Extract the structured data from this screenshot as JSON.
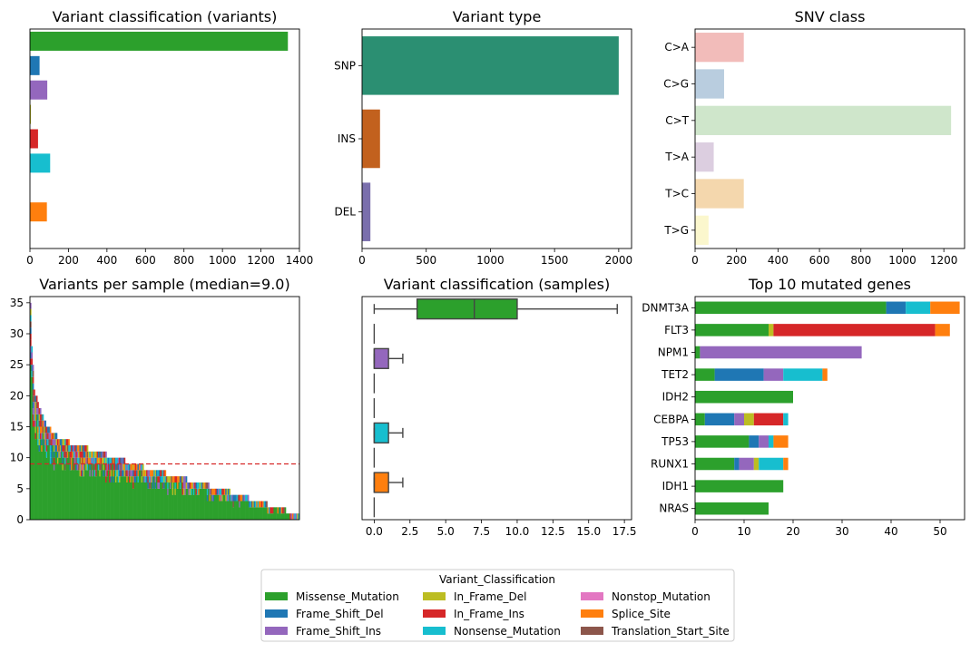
{
  "colors": {
    "Missense_Mutation": "#2ca02c",
    "Frame_Shift_Del": "#1f77b4",
    "Frame_Shift_Ins": "#9467bd",
    "In_Frame_Del": "#bcbd22",
    "In_Frame_Ins": "#d62728",
    "Nonsense_Mutation": "#17becf",
    "Nonstop_Mutation": "#e377c2",
    "Splice_Site": "#ff7f0e",
    "Translation_Start_Site": "#8c564b"
  },
  "legend": {
    "title": "Variant_Classification",
    "entries": [
      "Missense_Mutation",
      "Frame_Shift_Del",
      "Frame_Shift_Ins",
      "In_Frame_Del",
      "In_Frame_Ins",
      "Nonsense_Mutation",
      "Nonstop_Mutation",
      "Splice_Site",
      "Translation_Start_Site"
    ]
  },
  "chart_data": [
    {
      "id": "variant_classification_variants",
      "type": "bar",
      "orientation": "horizontal",
      "title": "Variant classification (variants)",
      "categories": [
        "Missense_Mutation",
        "Frame_Shift_Del",
        "Frame_Shift_Ins",
        "In_Frame_Del",
        "In_Frame_Ins",
        "Nonsense_Mutation",
        "Nonstop_Mutation",
        "Splice_Site",
        "Translation_Start_Site"
      ],
      "values": [
        1340,
        50,
        90,
        5,
        42,
        105,
        0,
        88,
        0
      ],
      "xlim": [
        0,
        1400
      ],
      "xticks": [
        0,
        200,
        400,
        600,
        800,
        1000,
        1200,
        1400
      ],
      "show_ytick_labels": false
    },
    {
      "id": "variant_type",
      "type": "bar",
      "orientation": "horizontal",
      "title": "Variant type",
      "categories": [
        "SNP",
        "INS",
        "DEL"
      ],
      "values": [
        2000,
        140,
        65
      ],
      "colors": [
        "#2b8f72",
        "#c2611e",
        "#7a6fac"
      ],
      "xlim": [
        0,
        2100
      ],
      "xticks": [
        0,
        500,
        1000,
        1500,
        2000
      ]
    },
    {
      "id": "snv_class",
      "type": "bar",
      "orientation": "horizontal",
      "title": "SNV class",
      "categories": [
        "C>A",
        "C>G",
        "C>T",
        "T>A",
        "T>C",
        "T>G"
      ],
      "values": [
        235,
        140,
        1235,
        90,
        235,
        65
      ],
      "colors": [
        "#f2bcba",
        "#b9cddf",
        "#cfe6cb",
        "#dccee0",
        "#f4d7ad",
        "#fbf7cd"
      ],
      "xlim": [
        0,
        1300
      ],
      "xticks": [
        0,
        200,
        400,
        600,
        800,
        1000,
        1200
      ]
    },
    {
      "id": "variants_per_sample",
      "type": "bar",
      "stacked": true,
      "title": "Variants per sample (median=9.0)",
      "median": 9.0,
      "ylim": [
        0,
        36
      ],
      "yticks": [
        0,
        5,
        10,
        15,
        20,
        25,
        30,
        35
      ],
      "totals_profile": [
        [
          1,
          35
        ],
        [
          2,
          28
        ],
        [
          4,
          21
        ],
        [
          8,
          18
        ],
        [
          15,
          15
        ],
        [
          25,
          13
        ],
        [
          40,
          12
        ],
        [
          55,
          11
        ],
        [
          70,
          10
        ],
        [
          85,
          9
        ],
        [
          100,
          8
        ],
        [
          120,
          7
        ],
        [
          135,
          6
        ],
        [
          155,
          5
        ],
        [
          170,
          4
        ],
        [
          185,
          3
        ],
        [
          200,
          2
        ],
        [
          215,
          1
        ]
      ],
      "n_samples": 218,
      "missense_fraction": 0.72,
      "show_xtick_labels": false
    },
    {
      "id": "variant_classification_samples",
      "type": "box",
      "orientation": "horizontal",
      "title": "Variant classification (samples)",
      "categories": [
        "Missense_Mutation",
        "Frame_Shift_Del",
        "Frame_Shift_Ins",
        "In_Frame_Del",
        "In_Frame_Ins",
        "Nonsense_Mutation",
        "Nonstop_Mutation",
        "Splice_Site",
        "Translation_Start_Site"
      ],
      "boxes": [
        {
          "min": 0,
          "q1": 3,
          "median": 7,
          "q3": 10,
          "max": 17
        },
        {
          "min": 0,
          "q1": 0,
          "median": 0,
          "q3": 0,
          "max": 0
        },
        {
          "min": 0,
          "q1": 0,
          "median": 0,
          "q3": 1,
          "max": 2
        },
        {
          "min": 0,
          "q1": 0,
          "median": 0,
          "q3": 0,
          "max": 0
        },
        {
          "min": 0,
          "q1": 0,
          "median": 0,
          "q3": 0,
          "max": 0
        },
        {
          "min": 0,
          "q1": 0,
          "median": 0,
          "q3": 1,
          "max": 2
        },
        {
          "min": 0,
          "q1": 0,
          "median": 0,
          "q3": 0,
          "max": 0
        },
        {
          "min": 0,
          "q1": 0,
          "median": 0,
          "q3": 1,
          "max": 2
        },
        {
          "min": 0,
          "q1": 0,
          "median": 0,
          "q3": 0,
          "max": 0
        }
      ],
      "xlim": [
        -0.85,
        18
      ],
      "xticks": [
        0.0,
        2.5,
        5.0,
        7.5,
        10.0,
        12.5,
        15.0,
        17.5
      ],
      "xtick_labels": [
        "0.0",
        "2.5",
        "5.0",
        "7.5",
        "10.0",
        "12.5",
        "15.0",
        "17.5"
      ]
    },
    {
      "id": "top10_mutated_genes",
      "type": "bar",
      "orientation": "horizontal",
      "stacked": true,
      "title": "Top 10 mutated genes",
      "categories": [
        "DNMT3A",
        "FLT3",
        "NPM1",
        "TET2",
        "IDH2",
        "CEBPA",
        "TP53",
        "RUNX1",
        "IDH1",
        "NRAS"
      ],
      "series": [
        {
          "name": "Missense_Mutation",
          "values": [
            39,
            15,
            1,
            4,
            20,
            2,
            11,
            8,
            18,
            15
          ]
        },
        {
          "name": "Frame_Shift_Del",
          "values": [
            4,
            0,
            0,
            10,
            0,
            6,
            2,
            1,
            0,
            0
          ]
        },
        {
          "name": "Frame_Shift_Ins",
          "values": [
            0,
            0,
            33,
            4,
            0,
            2,
            2,
            3,
            0,
            0
          ]
        },
        {
          "name": "In_Frame_Del",
          "values": [
            0,
            1,
            0,
            0,
            0,
            2,
            0,
            1,
            0,
            0
          ]
        },
        {
          "name": "In_Frame_Ins",
          "values": [
            0,
            33,
            0,
            0,
            0,
            6,
            0,
            0,
            0,
            0
          ]
        },
        {
          "name": "Nonsense_Mutation",
          "values": [
            5,
            0,
            0,
            8,
            0,
            1,
            1,
            5,
            0,
            0
          ]
        },
        {
          "name": "Nonstop_Mutation",
          "values": [
            0,
            0,
            0,
            0,
            0,
            0,
            0,
            0,
            0,
            0
          ]
        },
        {
          "name": "Splice_Site",
          "values": [
            6,
            3,
            0,
            1,
            0,
            0,
            3,
            1,
            0,
            0
          ]
        },
        {
          "name": "Translation_Start_Site",
          "values": [
            0,
            0,
            0,
            0,
            0,
            0,
            0,
            0,
            0,
            0
          ]
        }
      ],
      "xlim": [
        0,
        55
      ],
      "xticks": [
        0,
        10,
        20,
        30,
        40,
        50
      ]
    }
  ]
}
